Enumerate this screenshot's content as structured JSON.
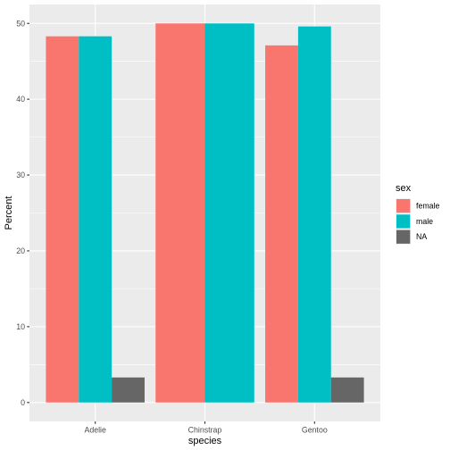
{
  "chart_data": {
    "type": "bar",
    "categories": [
      "Adelie",
      "Chinstrap",
      "Gentoo"
    ],
    "series": [
      {
        "name": "female",
        "values": [
          48.3,
          50.0,
          47.1
        ],
        "color": "#F8766D"
      },
      {
        "name": "male",
        "values": [
          48.3,
          50.0,
          49.6
        ],
        "color": "#00BFC4"
      },
      {
        "name": "NA",
        "values": [
          3.3,
          null,
          3.3
        ],
        "color": "#666666"
      }
    ],
    "xlabel": "species",
    "ylabel": "Percent",
    "ylim": [
      -2.5,
      52.5
    ],
    "yticks": [
      0,
      10,
      20,
      30,
      40,
      50
    ],
    "legend_title": "sex",
    "legend_position": "right",
    "grid": true,
    "panel_background": "#EBEBEB"
  }
}
